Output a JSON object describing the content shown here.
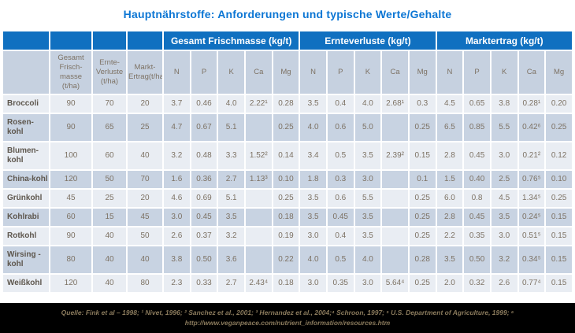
{
  "title": "Hauptnährstoffe: Anforderungen und typische Werte/Gehalte",
  "table": {
    "groups": [
      "Gesamt Frischmasse (kg/t)",
      "Ernteverluste (kg/t)",
      "Marktertrag (kg/t)"
    ],
    "col_headers": [
      "Gesamt Frisch-masse (t/ha)",
      "Ernte-Verluste (t/ha)",
      "Markt-Ertrag(t/ha)"
    ],
    "nutrient_columns": [
      "N",
      "P",
      "K",
      "Ca",
      "Mg"
    ],
    "rows": [
      {
        "label": "Broccoli",
        "tha": [
          "90",
          "70",
          "20"
        ],
        "gesamt_frischmasse": [
          "3.7",
          "0.46",
          "4.0",
          "2.22¹",
          "0.28"
        ],
        "ernteverluste": [
          "3.5",
          "0.4",
          "4.0",
          "2.68¹",
          "0.3"
        ],
        "marktertrag": [
          "4.5",
          "0.65",
          "3.8",
          "0.28¹",
          "0.20"
        ]
      },
      {
        "label": "Rosen-kohl",
        "tha": [
          "90",
          "65",
          "25"
        ],
        "gesamt_frischmasse": [
          "4.7",
          "0.67",
          "5.1",
          "",
          "0.25"
        ],
        "ernteverluste": [
          "4.0",
          "0.6",
          "5.0",
          "",
          "0.25"
        ],
        "marktertrag": [
          "6.5",
          "0.85",
          "5.5",
          "0.42⁶",
          "0.25"
        ]
      },
      {
        "label": "Blumen-kohl",
        "tha": [
          "100",
          "60",
          "40"
        ],
        "gesamt_frischmasse": [
          "3.2",
          "0.48",
          "3.3",
          "1.52²",
          "0.14"
        ],
        "ernteverluste": [
          "3.4",
          "0.5",
          "3.5",
          "2.39²",
          "0.15"
        ],
        "marktertrag": [
          "2.8",
          "0.45",
          "3.0",
          "0.21²",
          "0.12"
        ]
      },
      {
        "label": "China-kohl",
        "tha": [
          "120",
          "50",
          "70"
        ],
        "gesamt_frischmasse": [
          "1.6",
          "0.36",
          "2.7",
          "1.13³",
          "0.10"
        ],
        "ernteverluste": [
          "1.8",
          "0.3",
          "3.0",
          "",
          "0.1"
        ],
        "marktertrag": [
          "1.5",
          "0.40",
          "2.5",
          "0.76⁵",
          "0.10"
        ]
      },
      {
        "label": "Grünkohl",
        "tha": [
          "45",
          "25",
          "20"
        ],
        "gesamt_frischmasse": [
          "4.6",
          "0.69",
          "5.1",
          "",
          "0.25"
        ],
        "ernteverluste": [
          "3.5",
          "0.6",
          "5.5",
          "",
          "0.25"
        ],
        "marktertrag": [
          "6.0",
          "0.8",
          "4.5",
          "1.34⁵",
          "0.25"
        ]
      },
      {
        "label": "Kohlrabi",
        "tha": [
          "60",
          "15",
          "45"
        ],
        "gesamt_frischmasse": [
          "3.0",
          "0.45",
          "3.5",
          "",
          "0.18"
        ],
        "ernteverluste": [
          "3.5",
          "0.45",
          "3.5",
          "",
          "0.25"
        ],
        "marktertrag": [
          "2.8",
          "0.45",
          "3.5",
          "0.24⁵",
          "0.15"
        ]
      },
      {
        "label": "Rotkohl",
        "tha": [
          "90",
          "40",
          "50"
        ],
        "gesamt_frischmasse": [
          "2.6",
          "0.37",
          "3.2",
          "",
          "0.19"
        ],
        "ernteverluste": [
          "3.0",
          "0.4",
          "3.5",
          "",
          "0.25"
        ],
        "marktertrag": [
          "2.2",
          "0.35",
          "3.0",
          "0.51⁵",
          "0.15"
        ]
      },
      {
        "label": "Wirsing - kohl",
        "tha": [
          "80",
          "40",
          "40"
        ],
        "gesamt_frischmasse": [
          "3.8",
          "0.50",
          "3.6",
          "",
          "0.22"
        ],
        "ernteverluste": [
          "4.0",
          "0.5",
          "4.0",
          "",
          "0.28"
        ],
        "marktertrag": [
          "3.5",
          "0.50",
          "3.2",
          "0.34⁵",
          "0.15"
        ]
      },
      {
        "label": "Weißkohl",
        "tha": [
          "120",
          "40",
          "80"
        ],
        "gesamt_frischmasse": [
          "2.3",
          "0.33",
          "2.7",
          "2.43⁴",
          "0.18"
        ],
        "ernteverluste": [
          "3.0",
          "0.35",
          "3.0",
          "5.64⁴",
          "0.25"
        ],
        "marktertrag": [
          "2.0",
          "0.32",
          "2.6",
          "0.77⁴",
          "0.15"
        ]
      }
    ]
  },
  "footer": {
    "text": "Quelle: Fink et al – 1998; ¹ Nivet, 1996; ² Sanchez et al., 2001; ³ Hernandez et al., 2004;⁴ Schroon, 1997; ⁵ U.S. Department of Agriculture, 1999; ⁶ http://www.veganpeace.com/nutrient_information/resources.htm"
  },
  "colors": {
    "title_blue": "#0c76d4",
    "header_blue": "#1070c0",
    "row_light": "#e9edf3",
    "row_dark": "#c8d3e2",
    "subheader_bg": "#c6d1e0",
    "cell_text": "#7d7264",
    "footer_bg": "#000000",
    "footer_text": "#8a7a5c"
  }
}
